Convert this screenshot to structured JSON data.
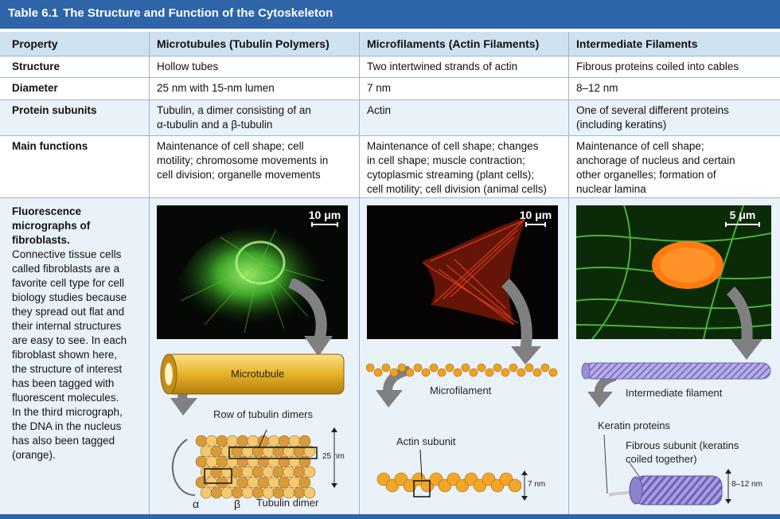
{
  "table": {
    "number": "Table 6.1",
    "title": "The Structure and Function of the Cytoskeleton",
    "headers": [
      "Property",
      "Microtubules (Tubulin Polymers)",
      "Microfilaments (Actin Filaments)",
      "Intermediate Filaments"
    ],
    "rows": [
      {
        "property": "Structure",
        "microtubules": "Hollow tubes",
        "microfilaments": "Two intertwined strands of actin",
        "intermediate": "Fibrous proteins coiled into cables"
      },
      {
        "property": "Diameter",
        "microtubules": "25 nm with 15-nm lumen",
        "microfilaments": "7 nm",
        "intermediate": "8–12 nm"
      },
      {
        "property": "Protein subunits",
        "microtubules": [
          "Tubulin, a dimer consisting of an",
          "α-tubulin and a β-tubulin"
        ],
        "microfilaments": "Actin",
        "intermediate": [
          "One of several different proteins",
          "(including keratins)"
        ]
      },
      {
        "property": "Main functions",
        "microtubules": [
          "Maintenance of cell shape; cell",
          "motility; chromosome movements in",
          "cell division; organelle movements"
        ],
        "microfilaments": [
          "Maintenance of cell shape; changes",
          "in cell shape; muscle contraction;",
          "cytoplasmic streaming (plant cells);",
          "cell motility; cell division (animal cells)"
        ],
        "intermediate": [
          "Maintenance of cell shape;",
          "anchorage of nucleus and certain",
          "other organelles; formation of",
          "nuclear lamina"
        ]
      }
    ]
  },
  "micrographs": {
    "heading": [
      "Fluorescence",
      "micrographs of",
      "fibroblasts."
    ],
    "description": [
      "Connective tissue cells",
      "called fibroblasts are a",
      "favorite cell type for cell",
      "biology studies because",
      "they spread out flat and",
      "their internal structures",
      "are easy to see. In each",
      "fibroblast shown here,",
      "the structure of interest",
      "has been tagged with",
      "fluorescent molecules.",
      "In the third micrograph,",
      "the DNA in the nucleus",
      "has also been tagged",
      "(orange)."
    ],
    "scale_bars": [
      "10 μm",
      "10 μm",
      "5 μm"
    ]
  },
  "diagrams": {
    "microtubule": {
      "label": "Microtubule",
      "row_label": "Row of tubulin dimers",
      "size": "25 nm",
      "alpha": "α",
      "beta": "β",
      "dimer_label": "Tubulin dimer"
    },
    "microfilament": {
      "label": "Microfilament",
      "subunit_label": "Actin subunit",
      "size": "7 nm"
    },
    "intermediate": {
      "label": "Intermediate filament",
      "keratin_label": "Keratin proteins",
      "fibrous_label": [
        "Fibrous subunit (keratins",
        "coiled together)"
      ],
      "size": "8–12 nm"
    }
  },
  "colors": {
    "title_bar": "#2e64a8",
    "header_bg": "#cfe0ef",
    "row_tint": "#eaf2f9",
    "rule": "#9db6cf",
    "microtubule_gold": "#e7b226",
    "actin_orange": "#f0a020",
    "keratin_purple": "#9a8fd6"
  }
}
